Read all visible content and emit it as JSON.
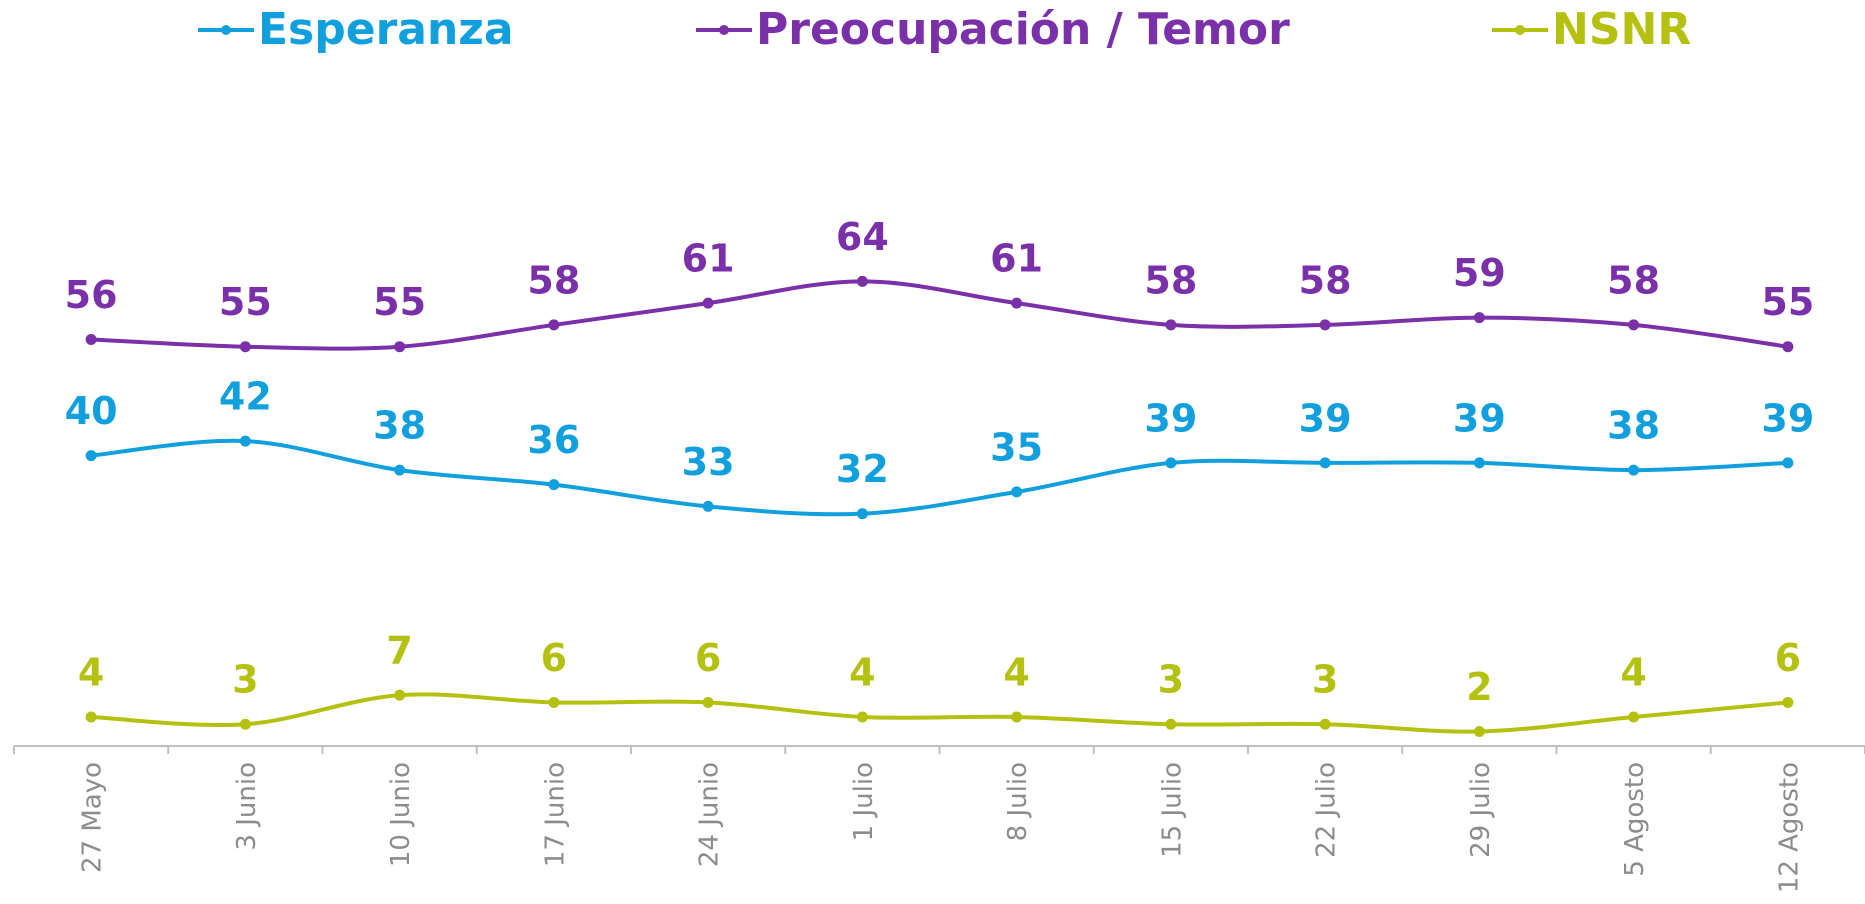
{
  "chart_data": {
    "type": "line",
    "categories": [
      "27 Mayo",
      "3 Junio",
      "10 Junio",
      "17 Junio",
      "24 Junio",
      "1 Julio",
      "8 Julio",
      "15 Julio",
      "22 Julio",
      "29 Julio",
      "5 Agosto",
      "12 Agosto"
    ],
    "series": [
      {
        "name": "Esperanza",
        "color": "#119fdd",
        "values": [
          40,
          42,
          38,
          36,
          33,
          32,
          35,
          39,
          39,
          39,
          38,
          39
        ]
      },
      {
        "name": "Preocupación / Temor",
        "color": "#7a30a8",
        "values": [
          56,
          55,
          55,
          58,
          61,
          64,
          61,
          58,
          58,
          59,
          58,
          55
        ]
      },
      {
        "name": "NSNR",
        "color": "#b4c111",
        "values": [
          4,
          3,
          7,
          6,
          6,
          4,
          4,
          3,
          3,
          2,
          4,
          6
        ]
      }
    ],
    "ylim": [
      0,
      100
    ],
    "grid": false,
    "legend": "top",
    "smooth": true
  }
}
